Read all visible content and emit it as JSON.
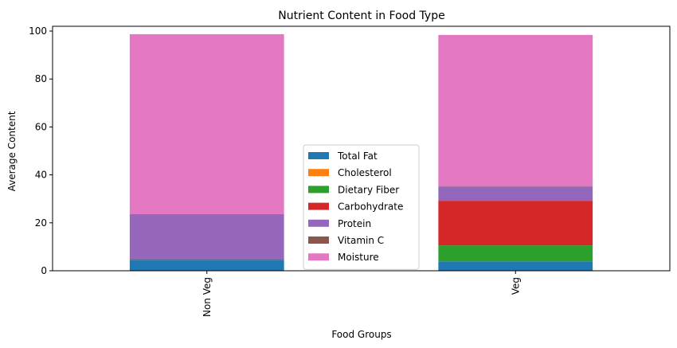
{
  "chart_data": {
    "type": "bar",
    "stacked": true,
    "title": "Nutrient Content in Food Type",
    "xlabel": "Food Groups",
    "ylabel": "Average Content",
    "categories": [
      "Non Veg",
      "Veg"
    ],
    "ylim": [
      0,
      102
    ],
    "yticks": [
      0,
      20,
      40,
      60,
      80,
      100
    ],
    "grid": false,
    "legend_position": "lower center",
    "series": [
      {
        "name": "Total Fat",
        "color": "#1f77b4",
        "values": [
          4.6,
          3.9
        ]
      },
      {
        "name": "Cholesterol",
        "color": "#ff7f0e",
        "values": [
          0.1,
          0.0
        ]
      },
      {
        "name": "Dietary Fiber",
        "color": "#2ca02c",
        "values": [
          0.0,
          6.7
        ]
      },
      {
        "name": "Carbohydrate",
        "color": "#d62728",
        "values": [
          0.3,
          18.6
        ]
      },
      {
        "name": "Protein",
        "color": "#9467bd",
        "values": [
          18.6,
          5.9
        ]
      },
      {
        "name": "Vitamin C",
        "color": "#8c564b",
        "values": [
          0.0,
          0.1
        ]
      },
      {
        "name": "Moisture",
        "color": "#e377c2",
        "values": [
          75.1,
          63.2
        ]
      }
    ]
  }
}
